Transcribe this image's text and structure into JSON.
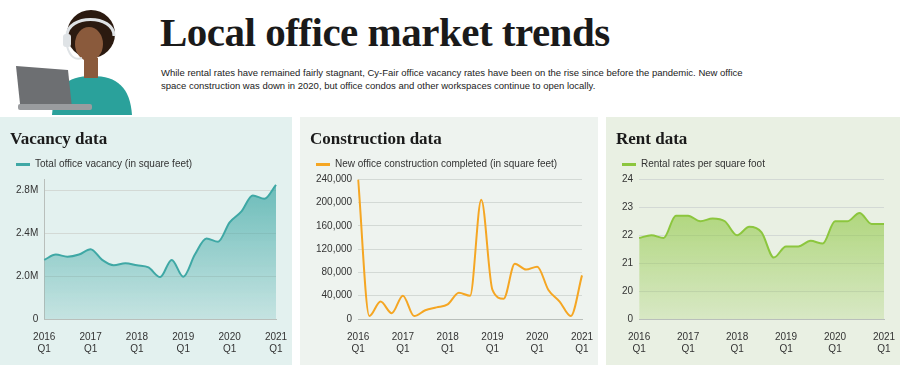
{
  "title": "Local office market trends",
  "subtitle": "While rental rates have remained fairly stagnant, Cy-Fair office vacancy rates have been on the rise since before the pandemic. New office space construction was down in 2020, but office condos and other workspaces continue to open locally.",
  "chart_data": [
    {
      "type": "area",
      "title": "Vacancy data",
      "categories": [
        "2016 Q1",
        null,
        null,
        null,
        "2017 Q1",
        null,
        null,
        null,
        "2018 Q1",
        null,
        null,
        null,
        "2019 Q1",
        null,
        null,
        null,
        "2020 Q1",
        null,
        null,
        null,
        "2021 Q1"
      ],
      "series": [
        {
          "name": "Total office vacancy (in square feet)",
          "color": "#3fa8a5",
          "marker": "none",
          "values": [
            2150000,
            2200000,
            2180000,
            2200000,
            2250000,
            2150000,
            2100000,
            2120000,
            2100000,
            2080000,
            1950000,
            2150000,
            1970000,
            2200000,
            2350000,
            2320000,
            2500000,
            2600000,
            2750000,
            2720000,
            2850000
          ]
        }
      ],
      "ylim": [
        0,
        2900000
      ],
      "yticks": [
        0,
        {
          "value": 2000000,
          "label": "2.0M"
        },
        {
          "value": 2400000,
          "label": "2.4M"
        },
        {
          "value": 2800000,
          "label": "2.8M"
        }
      ],
      "grid": true,
      "legend": "top-left"
    },
    {
      "type": "line",
      "title": "Construction data",
      "categories": [
        "2016 Q1",
        null,
        null,
        null,
        "2017 Q1",
        null,
        null,
        null,
        "2018 Q1",
        null,
        null,
        null,
        "2019 Q1",
        null,
        null,
        null,
        "2020 Q1",
        null,
        null,
        null,
        "2021 Q1"
      ],
      "series": [
        {
          "name": "New office construction completed (in square feet)",
          "color": "#f5a623",
          "marker": "none",
          "values": [
            240000,
            5000,
            30000,
            10000,
            40000,
            5000,
            15000,
            20000,
            25000,
            45000,
            40000,
            205000,
            50000,
            35000,
            95000,
            85000,
            90000,
            50000,
            30000,
            5000,
            75000
          ]
        }
      ],
      "ylim": [
        0,
        240000
      ],
      "yticks": [
        0,
        {
          "value": 40000,
          "label": "40,000"
        },
        {
          "value": 80000,
          "label": "80,000"
        },
        {
          "value": 120000,
          "label": "120,000"
        },
        {
          "value": 160000,
          "label": "160,000"
        },
        {
          "value": 200000,
          "label": "200,000"
        },
        {
          "value": 240000,
          "label": "240,000"
        }
      ],
      "grid": true,
      "legend": "top-left"
    },
    {
      "type": "area",
      "title": "Rent data",
      "categories": [
        "2016 Q1",
        null,
        null,
        null,
        "2017 Q1",
        null,
        null,
        null,
        "2018 Q1",
        null,
        null,
        null,
        "2019 Q1",
        null,
        null,
        null,
        "2020 Q1",
        null,
        null,
        null,
        "2021 Q1"
      ],
      "series": [
        {
          "name": "Rental rates per square foot",
          "color": "#8cc63e",
          "marker": "none",
          "values": [
            21.9,
            22.0,
            21.9,
            22.7,
            22.7,
            22.5,
            22.6,
            22.5,
            22.0,
            22.3,
            22.1,
            21.2,
            21.6,
            21.6,
            21.8,
            21.7,
            22.5,
            22.5,
            22.8,
            22.4,
            22.4
          ]
        }
      ],
      "ylim": [
        0,
        24
      ],
      "yticks": [
        0,
        20,
        21,
        22,
        23,
        24
      ],
      "grid": true,
      "legend": "top-left"
    }
  ]
}
